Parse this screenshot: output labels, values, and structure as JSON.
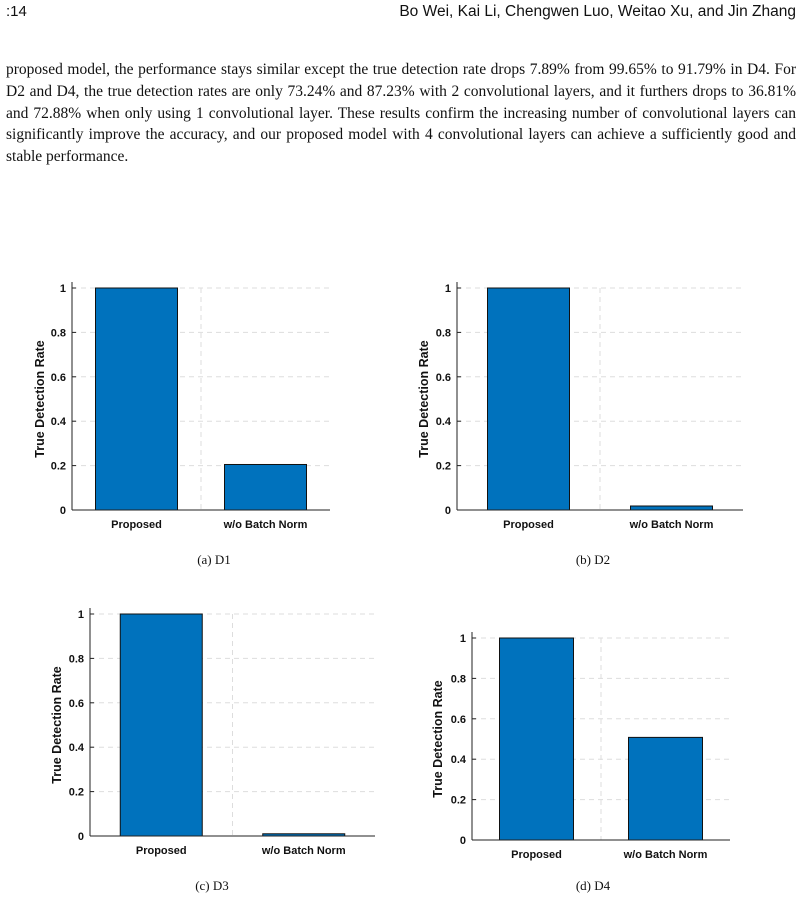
{
  "header": {
    "page_number": ":14",
    "authors": "Bo Wei, Kai Li, Chengwen Luo, Weitao Xu, and Jin Zhang"
  },
  "paragraph": "proposed model, the performance stays similar except the true detection rate drops 7.89% from 99.65% to 91.79% in D4. For D2 and D4, the true detection rates are only 73.24% and 87.23% with 2 convolutional layers, and it furthers drops to 36.81% and 72.88% when only using 1 convolutional layer. These results confirm the increasing number of convolutional layers can significantly improve the accuracy, and our proposed model with 4 convolutional layers can achieve a sufficiently good and stable performance.",
  "colors": {
    "bar": "#0072bd",
    "grid": "#dddddd",
    "axis": "#222222"
  },
  "captions": [
    "(a) D1",
    "(b) D2",
    "(c) D3",
    "(d) D4"
  ],
  "chart_data": [
    {
      "type": "bar",
      "categories": [
        "Proposed",
        "w/o Batch Norm"
      ],
      "values": [
        1.0,
        0.205
      ],
      "ylabel": "True Detection Rate",
      "ylim": [
        0,
        1
      ],
      "yticks": [
        "0",
        "0.2",
        "0.4",
        "0.6",
        "0.8",
        "1"
      ],
      "grid": true
    },
    {
      "type": "bar",
      "categories": [
        "Proposed",
        "w/o Batch Norm"
      ],
      "values": [
        1.0,
        0.018
      ],
      "ylabel": "True Detection Rate",
      "ylim": [
        0,
        1
      ],
      "yticks": [
        "0",
        "0.2",
        "0.4",
        "0.6",
        "0.8",
        "1"
      ],
      "grid": true
    },
    {
      "type": "bar",
      "categories": [
        "Proposed",
        "w/o Batch Norm"
      ],
      "values": [
        1.0,
        0.01
      ],
      "ylabel": "True Detection Rate",
      "ylim": [
        0,
        1
      ],
      "yticks": [
        "0",
        "0.2",
        "0.4",
        "0.6",
        "0.8",
        "1"
      ],
      "grid": true
    },
    {
      "type": "bar",
      "categories": [
        "Proposed",
        "w/o Batch Norm"
      ],
      "values": [
        1.0,
        0.508
      ],
      "ylabel": "True Detection Rate",
      "ylim": [
        0,
        1
      ],
      "yticks": [
        "0",
        "0.2",
        "0.4",
        "0.6",
        "0.8",
        "1"
      ],
      "grid": true
    }
  ]
}
